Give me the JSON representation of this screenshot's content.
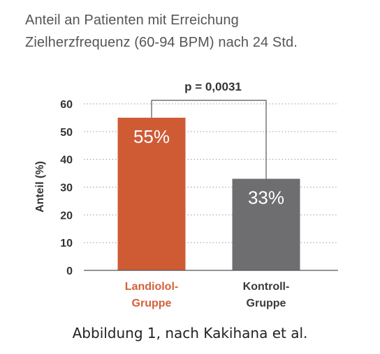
{
  "chart_data": {
    "type": "bar",
    "title_lines": [
      "Anteil an Patienten mit Erreichung",
      "Zielherzfrequenz (60-94 BPM) nach 24 Std."
    ],
    "ylabel": "Anteil (%)",
    "xlabel": "",
    "ylim": [
      0,
      60
    ],
    "yticks": [
      0,
      10,
      20,
      30,
      40,
      50,
      60
    ],
    "grid": true,
    "categories": [
      {
        "line1": "Landiolol-",
        "line2": "Gruppe",
        "color": "#d4603a"
      },
      {
        "line1": "Kontroll-",
        "line2": "Gruppe",
        "color": "#3a3a3a"
      }
    ],
    "values": [
      55,
      33
    ],
    "value_labels": [
      "55%",
      "33%"
    ],
    "bar_colors": [
      "#cf5b35",
      "#6e6e70"
    ],
    "annotation": "p = 0,0031"
  },
  "caption": "Abbildung 1, nach Kakihana et al."
}
